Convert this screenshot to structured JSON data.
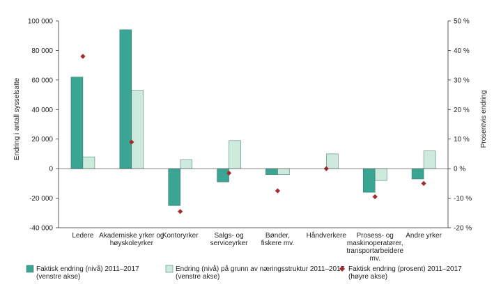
{
  "chart_data": {
    "type": "bar",
    "categories": [
      [
        "Ledere"
      ],
      [
        "Akademiske yrker og",
        "høyskoleyrker"
      ],
      [
        "Kontoryrker"
      ],
      [
        "Salgs- og",
        "serviceyrker"
      ],
      [
        "Bønder,",
        "fiskere mv."
      ],
      [
        "Håndverkere"
      ],
      [
        "Prosess- og",
        "maskinoperatører,",
        "transportarbeidere",
        "mv."
      ],
      [
        "Andre yrker"
      ]
    ],
    "series": [
      {
        "name": "Faktisk endring (nivå) 2011–2017 (venstre akse)",
        "legend_lines": [
          "Faktisk endring (nivå) 2011–2017",
          "(venstre akse)"
        ],
        "type": "bar",
        "axis": "left",
        "color": "#3aa593",
        "values": [
          62000,
          94000,
          -25000,
          -9000,
          -4000,
          0,
          -16000,
          -7000
        ]
      },
      {
        "name": "Endring (nivå) på grunn av næringsstruktur 2011–2017 (venstre akse)",
        "legend_lines": [
          "Endring (nivå) på grunn av næringsstruktur 2011–2017",
          "(venstre akse)"
        ],
        "type": "bar",
        "axis": "left",
        "color": "#cdeadd",
        "values": [
          8000,
          53000,
          6000,
          19000,
          -4000,
          10000,
          -8000,
          12000
        ]
      },
      {
        "name": "Faktisk endring (prosent) 2011–2017 (høyre akse)",
        "legend_lines": [
          "Faktisk endring (prosent) 2011–2017",
          "(høyre akse)"
        ],
        "type": "scatter",
        "axis": "right",
        "color": "#a52a2a",
        "values": [
          38,
          9,
          -14.5,
          -1.5,
          -7.5,
          0,
          -9.5,
          -5
        ]
      }
    ],
    "y_left": {
      "label": "Endring i antall sysselsatte",
      "ylim": [
        -40000,
        100000
      ],
      "ticks": [
        -40000,
        -20000,
        0,
        20000,
        40000,
        60000,
        80000,
        100000
      ],
      "tick_labels": [
        "-40 000",
        "-20 000",
        "0",
        "20 000",
        "40 000",
        "60 000",
        "80 000",
        "100 000"
      ]
    },
    "y_right": {
      "label": "Prosentvis endring",
      "ylim": [
        -20,
        50
      ],
      "ticks": [
        -20,
        -10,
        0,
        10,
        20,
        30,
        40,
        50
      ],
      "tick_labels": [
        "-20 %",
        "-10 %",
        "0 %",
        "10 %",
        "20 %",
        "30 %",
        "40 %",
        "50 %"
      ]
    },
    "grid": false,
    "legend_position": "bottom"
  }
}
